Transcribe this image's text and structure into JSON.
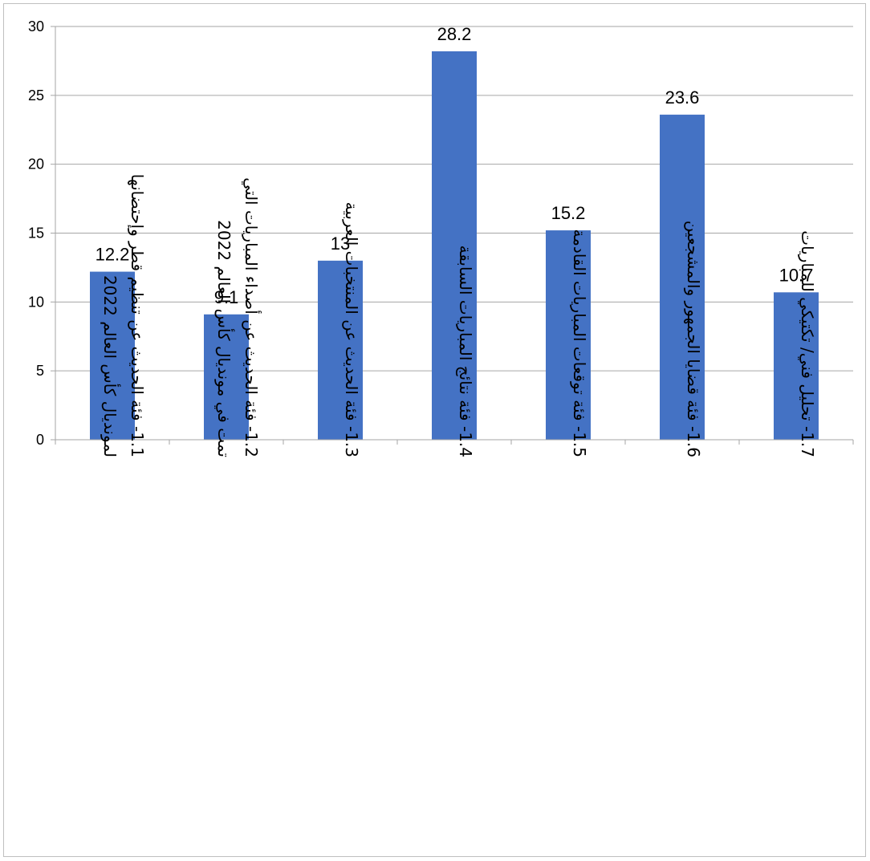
{
  "chart_data": {
    "type": "bar",
    "categories": [
      [
        "1.1- فئة الحديث عن تنظيم قطر وإحتضانها",
        "لمونديال كأس العالم 2022"
      ],
      [
        "1.2- فئة الحديث عن أصداء المباريات التي",
        "تمت في مونديال كأس العالم 2022"
      ],
      [
        "1.3- فئة الحديث عن المنتخبات العربية"
      ],
      [
        "1.4- فئة نتائج المباريات السابقة"
      ],
      [
        "1.5- فئة توقعات المباريات القادمة"
      ],
      [
        "1.6- فئة قضايا الجمهور والمشجعين"
      ],
      [
        "1.7- تحليل فني/ تكتيكي للمباريات"
      ]
    ],
    "values": [
      12.2,
      9.1,
      13,
      28.2,
      15.2,
      23.6,
      10.7
    ],
    "data_labels": [
      "12.2",
      "9.1",
      "13",
      "28.2",
      "15.2",
      "23.6",
      "10.7"
    ],
    "y_ticks": [
      "0",
      "5",
      "10",
      "15",
      "20",
      "25",
      "30"
    ],
    "ylim": [
      0,
      30
    ],
    "grid": true,
    "bar_color": "#4472c4",
    "gridline_color": "#a6a6a6",
    "axis_color": "#a6a6a6",
    "legend": "none"
  }
}
